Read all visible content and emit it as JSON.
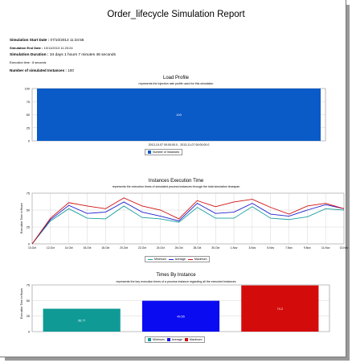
{
  "report": {
    "title": "Order_lifecycle Simulation Report",
    "start_label": "Simulation Start Date :",
    "start_value": "07/10/2013 11:34:56",
    "end_label": "Simulation End Date :",
    "end_value": "10/11/2013 11:23:24",
    "duration_label": "Simulation Duration :",
    "duration_value": "34 days 1 hours 7 minutes 46 seconds",
    "exec_label": "Execution time :",
    "exec_value": "8 seconds",
    "instances_label": "Number of simulated Instances :",
    "instances_value": "100"
  },
  "chart_data": [
    {
      "type": "bar",
      "title": "Load Profile",
      "subtitle": "represents the injection rate profile used for this simulation",
      "categories": [
        "2013-10-07 00:00:00.0 - 2013-11-07 00:00:00.0"
      ],
      "series": [
        {
          "name": "Number of Instances",
          "values": [
            100
          ],
          "color": "#0a5ac8"
        }
      ],
      "bar_label": "100",
      "ylim": [
        0,
        100
      ],
      "yticks": [
        "0",
        "25",
        "50",
        "75",
        "100"
      ],
      "grid": true,
      "legend": "bottom"
    },
    {
      "type": "line",
      "title": "Instances Execution Time",
      "subtitle": "represents the execution times of simulated process instances through the total simulation timespan",
      "ylabel": "Execution Time in Hours",
      "x": [
        "10-Oct",
        "12-Oct",
        "14-Oct",
        "16-Oct",
        "18-Oct",
        "20-Oct",
        "22-Oct",
        "24-Oct",
        "26-Oct",
        "28-Oct",
        "30-Oct",
        "1-Nov",
        "3-Nov",
        "5-Nov",
        "7-Nov",
        "9-Nov",
        "11-Nov",
        "13-Nov"
      ],
      "ylim": [
        0,
        75
      ],
      "yticks": [
        "0",
        "25",
        "50",
        "75"
      ],
      "series": [
        {
          "name": "Minimum",
          "color": "#1a9fa0",
          "values": [
            0,
            34,
            52,
            38,
            37,
            56,
            39,
            37,
            32,
            54,
            38,
            38,
            55,
            38,
            36,
            40,
            52,
            50
          ]
        },
        {
          "name": "Average",
          "color": "#2020d0",
          "values": [
            0,
            36,
            57,
            45,
            47,
            62,
            47,
            41,
            34,
            60,
            45,
            47,
            60,
            44,
            41,
            50,
            58,
            52
          ]
        },
        {
          "name": "Maximum",
          "color": "#d01010",
          "values": [
            0,
            38,
            61,
            56,
            52,
            68,
            56,
            50,
            37,
            64,
            55,
            62,
            66,
            54,
            44,
            56,
            60,
            52
          ]
        }
      ],
      "legend": "bottom",
      "grid": true
    },
    {
      "type": "bar",
      "title": "Times By Instance",
      "subtitle": "represents the key execution times of a process instance regarding all the executed instances",
      "ylabel": "Execution Time in Hours",
      "categories": [
        "Minimum",
        "Average",
        "Maximum"
      ],
      "values": [
        36.77,
        49.55,
        74.2
      ],
      "labels": [
        "36.77",
        "49.55",
        "74.2"
      ],
      "colors": [
        "#0f9a96",
        "#0b0bf2",
        "#d40b0b"
      ],
      "ylim": [
        0,
        75
      ],
      "yticks": [
        "0",
        "25",
        "50",
        "75"
      ],
      "legend": "bottom"
    }
  ]
}
